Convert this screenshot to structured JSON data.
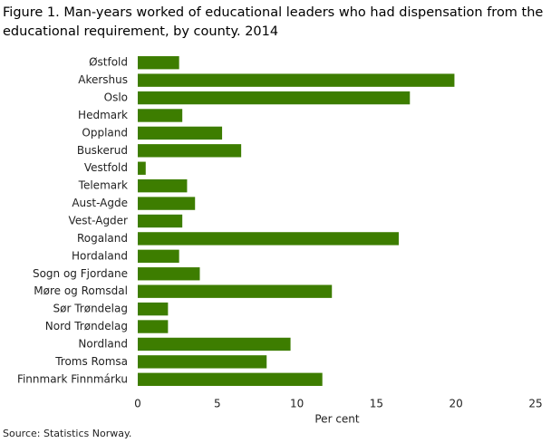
{
  "chart_data": {
    "type": "hbar",
    "title": "Figure 1. Man-years worked of educational leaders who had dispensation from the educational requirement, by county. 2014",
    "x_label": "Per cent",
    "source": "Source: Statistics Norway.",
    "categories": [
      "Østfold",
      "Akershus",
      "Oslo",
      "Hedmark",
      "Oppland",
      "Buskerud",
      "Vestfold",
      "Telemark",
      "Aust-Agde",
      "Vest-Agder",
      "Rogaland",
      "Hordaland",
      "Sogn og Fjordane",
      "Møre og Romsdal",
      "Sør Trøndelag",
      "Nord Trøndelag",
      "Nordland",
      "Troms Romsa",
      "Finnmark Finnmárku"
    ],
    "values": [
      2.6,
      19.9,
      17.1,
      2.8,
      5.3,
      6.5,
      0.5,
      3.1,
      3.6,
      2.8,
      16.4,
      2.6,
      3.9,
      12.2,
      1.9,
      1.9,
      9.6,
      8.1,
      11.6
    ],
    "color": "#3d7d00",
    "xlim": [
      0,
      25
    ],
    "xticks": [
      0,
      5,
      10,
      15,
      20,
      25
    ],
    "grid": false
  }
}
